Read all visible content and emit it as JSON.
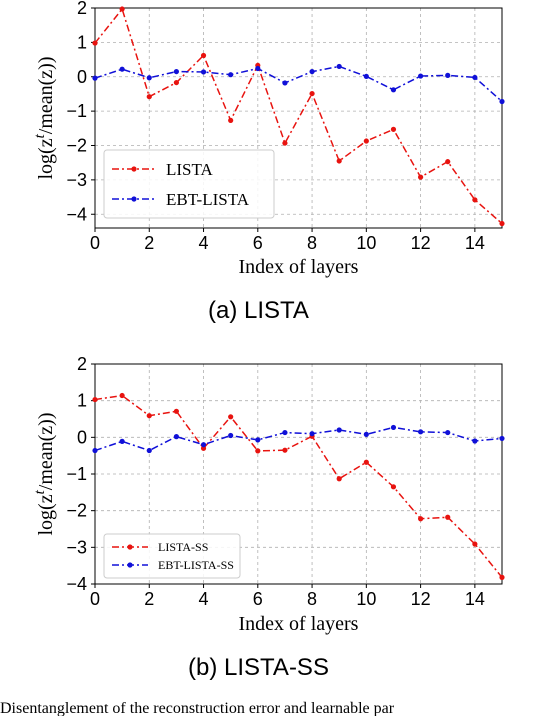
{
  "chart_data": [
    {
      "type": "line",
      "caption": "(a) LISTA",
      "xlabel": "Index of layers",
      "ylabel": "log(z^t/mean(z))",
      "xlim": [
        0,
        15
      ],
      "ylim": [
        -4.4,
        2.0
      ],
      "xticks": [
        0,
        2,
        4,
        6,
        8,
        10,
        12,
        14
      ],
      "yticks": [
        2,
        1,
        0,
        -1,
        -2,
        -3,
        -4
      ],
      "ytick_labels": [
        "2",
        "1",
        "0",
        "−1",
        "−2",
        "−3",
        "−4"
      ],
      "grid": true,
      "legend_position": "lower-left",
      "x": [
        0,
        1,
        2,
        3,
        4,
        5,
        6,
        7,
        8,
        9,
        10,
        11,
        12,
        13,
        14,
        15
      ],
      "series": [
        {
          "name": "LISTA",
          "color": "#e8130f",
          "values": [
            0.98,
            1.97,
            -0.58,
            -0.17,
            0.62,
            -1.27,
            0.33,
            -1.93,
            -0.49,
            -2.45,
            -1.87,
            -1.53,
            -2.92,
            -2.47,
            -3.58,
            -4.27
          ]
        },
        {
          "name": "EBT-LISTA",
          "color": "#1010d8",
          "values": [
            -0.04,
            0.22,
            -0.03,
            0.15,
            0.14,
            0.06,
            0.24,
            -0.18,
            0.15,
            0.3,
            0.01,
            -0.38,
            0.02,
            0.04,
            -0.02,
            -0.72
          ]
        }
      ]
    },
    {
      "type": "line",
      "caption": "(b) LISTA-SS",
      "xlabel": "Index of layers",
      "ylabel": "log(z^t/mean(z))",
      "xlim": [
        0,
        15
      ],
      "ylim": [
        -4.0,
        2.0
      ],
      "xticks": [
        0,
        2,
        4,
        6,
        8,
        10,
        12,
        14
      ],
      "yticks": [
        2,
        1,
        0,
        -1,
        -2,
        -3,
        -4
      ],
      "ytick_labels": [
        "2",
        "1",
        "0",
        "−1",
        "−2",
        "−3",
        "−4"
      ],
      "grid": true,
      "legend_position": "lower-left",
      "x": [
        0,
        1,
        2,
        3,
        4,
        5,
        6,
        7,
        8,
        9,
        10,
        11,
        12,
        13,
        14,
        15
      ],
      "series": [
        {
          "name": "LISTA-SS",
          "color": "#e8130f",
          "values": [
            1.03,
            1.14,
            0.59,
            0.71,
            -0.3,
            0.56,
            -0.37,
            -0.35,
            0.03,
            -1.13,
            -0.68,
            -1.35,
            -2.22,
            -2.18,
            -2.91,
            -3.82
          ]
        },
        {
          "name": "EBT-LISTA-SS",
          "color": "#1010d8",
          "values": [
            -0.36,
            -0.11,
            -0.36,
            0.02,
            -0.2,
            0.05,
            -0.07,
            0.13,
            0.1,
            0.2,
            0.08,
            0.27,
            0.15,
            0.13,
            -0.1,
            -0.03
          ]
        }
      ]
    }
  ],
  "footer_caption": "Disentanglement of the reconstruction error and learnable par"
}
